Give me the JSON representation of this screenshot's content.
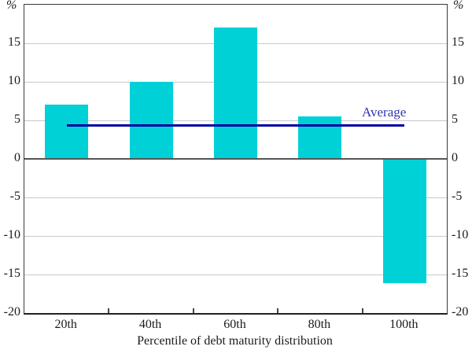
{
  "chart_data": {
    "type": "bar",
    "title": "",
    "categories": [
      "20th",
      "40th",
      "60th",
      "80th",
      "100th"
    ],
    "values": [
      7,
      10,
      17,
      5.5,
      -16
    ],
    "xlabel": "Percentile of debt maturity distribution",
    "ylabel_left": "%",
    "ylabel_right": "%",
    "ylim": [
      -20,
      20
    ],
    "yticks": [
      15,
      10,
      5,
      0,
      -5,
      -10,
      -15,
      -20
    ],
    "average_line": {
      "value": 4.4,
      "label": "Average"
    },
    "grid": "horizontal",
    "legend_position": "none"
  },
  "colors": {
    "bar": "#00d1d6",
    "average_line": "#0000a0",
    "average_label": "#3434b2",
    "gridline": "#c9c9c9",
    "zero_line": "#555555",
    "axis_border": "#3a3a3a",
    "text": "#1a1a1a",
    "background": "#ffffff"
  }
}
